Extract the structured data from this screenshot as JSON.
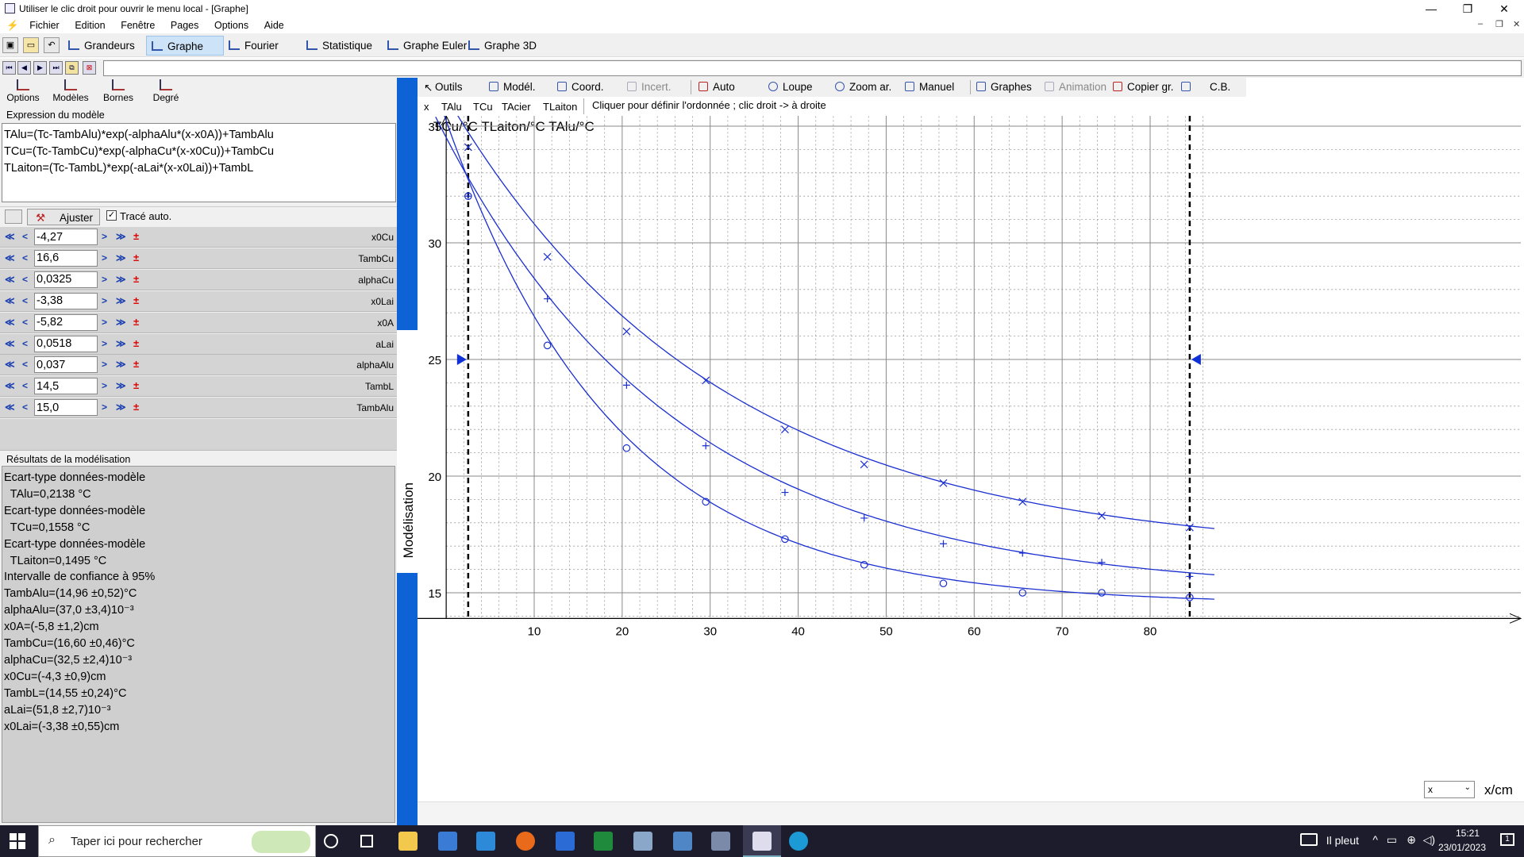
{
  "window": {
    "title": "Utiliser le clic droit pour ouvrir le menu local - [Graphe]"
  },
  "menu": [
    "Fichier",
    "Edition",
    "Fenêtre",
    "Pages",
    "Options",
    "Aide"
  ],
  "tabs": [
    "Grandeurs",
    "Graphe",
    "Fourier",
    "Statistique",
    "Graphe Euler",
    "Graphe 3D"
  ],
  "left_toolbar": [
    "Options",
    "Modèles",
    "Bornes",
    "Degré"
  ],
  "expression_label": "Expression du modèle",
  "expressions": [
    "TAlu=(Tc-TambAlu)*exp(-alphaAlu*(x-x0A))+TambAlu",
    "TCu=(Tc-TambCu)*exp(-alphaCu*(x-x0Cu))+TambCu",
    "TLaiton=(Tc-TambL)*exp(-aLai*(x-x0Lai))+TambL"
  ],
  "ajuster_label": "Ajuster",
  "trace_auto_label": "Tracé auto.",
  "params": [
    {
      "value": "-4,27",
      "name": "x0Cu"
    },
    {
      "value": "16,6",
      "name": "TambCu"
    },
    {
      "value": "0,0325",
      "name": "alphaCu"
    },
    {
      "value": "-3,38",
      "name": "x0Lai"
    },
    {
      "value": "-5,82",
      "name": "x0A"
    },
    {
      "value": "0,0518",
      "name": "aLai"
    },
    {
      "value": "0,037",
      "name": "alphaAlu"
    },
    {
      "value": "14,5",
      "name": "TambL"
    },
    {
      "value": "15,0",
      "name": "TambAlu"
    }
  ],
  "results_label": "Résultats de la modélisation",
  "results": [
    "Ecart-type données-modèle",
    "  TAlu=0,2138 °C",
    "Ecart-type données-modèle",
    "  TCu=0,1558 °C",
    "Ecart-type données-modèle",
    "  TLaiton=0,1495 °C",
    "Intervalle de confiance à 95%",
    "TambAlu=(14,96 ±0,52)°C",
    "alphaAlu=(37,0 ±3,4)10⁻³",
    "x0A=(-5,8 ±1,2)cm",
    "TambCu=(16,60 ±0,46)°C",
    "alphaCu=(32,5 ±2,4)10⁻³",
    "x0Cu=(-4,3 ±0,9)cm",
    "TambL=(14,55 ±0,24)°C",
    "aLai=(51,8 ±2,7)10⁻³",
    "x0Lai=(-3,38 ±0,55)cm"
  ],
  "side_label": "Modélisation",
  "graph_toolbar": [
    "Outils",
    "Modél.",
    "Coord.",
    "Incert.",
    "Auto",
    "Loupe",
    "Zoom ar.",
    "Manuel",
    "Graphes",
    "Animation",
    "Copier gr.",
    "C.B."
  ],
  "selectors": [
    "x",
    "TAlu",
    "TCu",
    "TAcier",
    "TLaiton"
  ],
  "hint": "Cliquer pour définir l'ordonnée ; clic droit -> à droite",
  "y_axis_label": "TCu/°C  TLaiton/°C  TAlu/°C",
  "x_axis_label": "x/cm",
  "x_select_value": "x",
  "chart_data": {
    "type": "scatter",
    "xlabel": "x/cm",
    "ylabel": "TCu/°C  TLaiton/°C  TAlu/°C",
    "xlim": [
      0,
      87
    ],
    "ylim": [
      13.9,
      35.5
    ],
    "x_ticks": [
      10,
      20,
      30,
      40,
      50,
      60,
      70,
      80
    ],
    "y_ticks": [
      15,
      20,
      25,
      30,
      35
    ],
    "bounds": [
      2.5,
      84.5
    ],
    "series": [
      {
        "name": "TCu",
        "marker": "x",
        "x": [
          2.5,
          11.5,
          20.5,
          29.5,
          38.5,
          47.5,
          56.5,
          65.5,
          74.5,
          84.5
        ],
        "y": [
          34.1,
          29.4,
          26.2,
          24.1,
          22.0,
          20.5,
          19.7,
          18.9,
          18.3,
          17.8
        ]
      },
      {
        "name": "TAlu",
        "marker": "+",
        "x": [
          2.5,
          11.5,
          20.5,
          29.5,
          38.5,
          47.5,
          56.5,
          65.5,
          74.5,
          84.5
        ],
        "y": [
          32.0,
          27.6,
          23.9,
          21.3,
          19.3,
          18.2,
          17.1,
          16.7,
          16.3,
          15.7
        ]
      },
      {
        "name": "TLaiton",
        "marker": "o",
        "x": [
          2.5,
          11.5,
          20.5,
          29.5,
          38.5,
          47.5,
          56.5,
          65.5,
          74.5,
          84.5
        ],
        "y": [
          32.0,
          25.6,
          21.2,
          18.9,
          17.3,
          16.2,
          15.4,
          15.0,
          15.0,
          14.8
        ]
      }
    ],
    "models": [
      {
        "name": "TCu",
        "Tamb": 16.6,
        "alpha": 0.0325,
        "x0": -4.27
      },
      {
        "name": "TAlu",
        "Tamb": 15.0,
        "alpha": 0.037,
        "x0": -5.82
      },
      {
        "name": "TLaiton",
        "Tamb": 14.5,
        "alpha": 0.0518,
        "x0": -3.38
      }
    ],
    "Tc": 39.2,
    "color": "#1a2fd0"
  },
  "taskbar": {
    "search_placeholder": "Taper ici pour rechercher",
    "weather": "Il pleut",
    "time": "15:21",
    "date": "23/01/2023",
    "notif": "1"
  }
}
